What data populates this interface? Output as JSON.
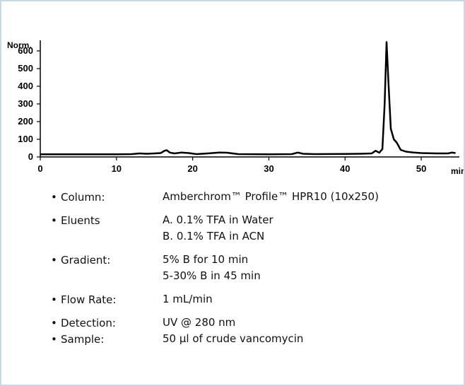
{
  "chart_data": {
    "type": "line",
    "x_label": "min",
    "y_label": "Norm.",
    "xlim": [
      0,
      55
    ],
    "xticks": [
      0,
      10,
      20,
      30,
      40,
      50
    ],
    "ylim": [
      0,
      660
    ],
    "yticks": [
      0,
      100,
      200,
      300,
      400,
      500,
      600
    ],
    "color": "#000000",
    "x": [
      0,
      5,
      10,
      12,
      13,
      14,
      15,
      15.8,
      16.3,
      16.6,
      17,
      17.6,
      18.5,
      19.5,
      20.5,
      22,
      23.5,
      24.5,
      26,
      30,
      33,
      33.8,
      34.5,
      36,
      40,
      42,
      43.5,
      44,
      44.5,
      44.9,
      45.2,
      45.45,
      45.7,
      46,
      46.4,
      46.8,
      47.3,
      48,
      49,
      50,
      52,
      53.5,
      54,
      54.5
    ],
    "values": [
      15,
      15,
      15,
      16,
      20,
      18,
      20,
      22,
      35,
      38,
      25,
      20,
      25,
      22,
      16,
      20,
      25,
      24,
      16,
      15,
      16,
      25,
      18,
      16,
      17,
      18,
      20,
      35,
      24,
      45,
      300,
      650,
      420,
      160,
      100,
      80,
      40,
      30,
      25,
      22,
      20,
      20,
      25,
      22
    ]
  },
  "specs": [
    {
      "label": "Column:",
      "lines": [
        "Amberchrom™ Profile™ HPR10 (10x250)"
      ]
    },
    {
      "label": "Eluents",
      "lines": [
        "A. 0.1% TFA in Water",
        "B. 0.1% TFA in ACN"
      ]
    },
    {
      "label": "Gradient:",
      "lines": [
        "5% B for 10 min",
        "5-30% B in 45 min"
      ]
    },
    {
      "label": "Flow Rate:",
      "lines": [
        "1 mL/min"
      ]
    },
    {
      "label": "Detection:",
      "lines": [
        "UV @ 280 nm"
      ]
    },
    {
      "label": "Sample:",
      "lines": [
        "50 µl of crude vancomycin"
      ]
    }
  ]
}
